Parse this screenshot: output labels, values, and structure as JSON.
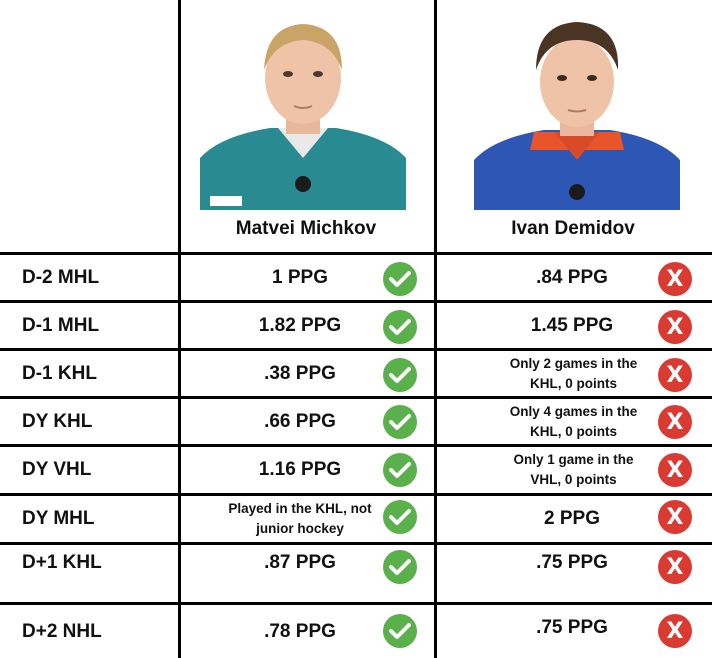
{
  "players": [
    {
      "name": "Matvei Michkov",
      "jersey_color": "#2a8a92",
      "icon": "check-icon",
      "badge_color": "#5ab04a"
    },
    {
      "name": "Ivan Demidov",
      "jersey_color": "#2d56b5",
      "icon": "x-icon",
      "badge_color": "#d93a32"
    }
  ],
  "rows": [
    {
      "label": "D-2 MHL",
      "michkov": "1 PPG",
      "demidov": ".84 PPG"
    },
    {
      "label": "D-1 MHL",
      "michkov": "1.82 PPG",
      "demidov": "1.45 PPG"
    },
    {
      "label": "D-1 KHL",
      "michkov": ".38 PPG",
      "demidov": "Only 2 games in the KHL, 0 points"
    },
    {
      "label": "DY KHL",
      "michkov": ".66 PPG",
      "demidov": "Only 4 games in the KHL, 0 points"
    },
    {
      "label": "DY VHL",
      "michkov": "1.16 PPG",
      "demidov": "Only 1 game in the VHL, 0 points"
    },
    {
      "label": "DY MHL",
      "michkov": "Played in the KHL, not junior hockey",
      "demidov": "2 PPG"
    },
    {
      "label": "D+1 KHL",
      "michkov": ".87 PPG",
      "demidov": ".75 PPG"
    },
    {
      "label": "D+2 NHL",
      "michkov": ".78 PPG",
      "demidov": ".75 PPG"
    }
  ],
  "cross_glyph": "X"
}
